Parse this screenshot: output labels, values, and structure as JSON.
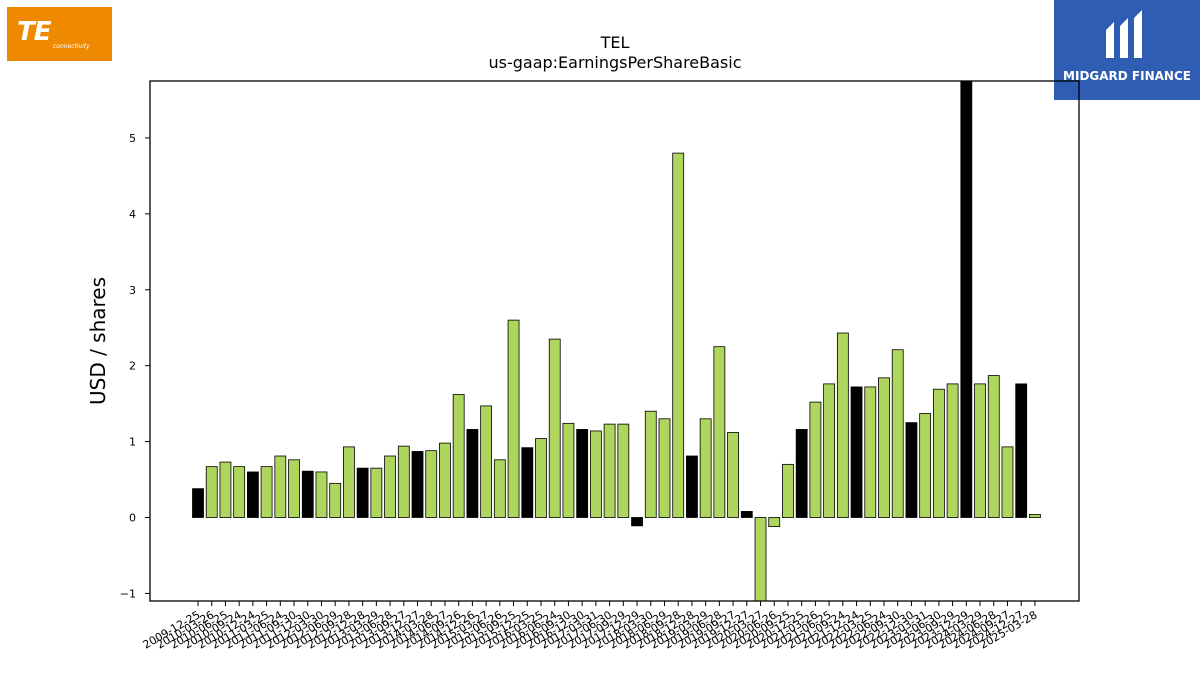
{
  "logos": {
    "left": {
      "text": "TE",
      "subtext": "connectivity",
      "color": "#ef8a00"
    },
    "right": {
      "text": "MIDGARD FINANCE",
      "color": "#2f5db3"
    }
  },
  "chart_data": {
    "type": "bar",
    "title": "TEL",
    "subtitle": "us-gaap:EarningsPerShareBasic",
    "xlabel": "",
    "ylabel": "USD / shares",
    "ylim": [
      -1.1,
      5.75
    ],
    "yticks": [
      -1,
      0,
      1,
      2,
      3,
      4,
      5
    ],
    "grid": false,
    "colors": {
      "dark": "#000000",
      "light": "#aed65e",
      "edge": "#000000"
    },
    "categories": [
      "2009-12-25",
      "2010-03-26",
      "2010-06-25",
      "2010-09-24",
      "2010-12-24",
      "2011-03-25",
      "2011-06-24",
      "2011-09-30",
      "2011-12-30",
      "2012-03-30",
      "2012-06-29",
      "2012-09-28",
      "2012-12-28",
      "2013-03-29",
      "2013-06-28",
      "2013-09-27",
      "2013-12-27",
      "2014-03-28",
      "2014-06-27",
      "2014-09-26",
      "2014-12-26",
      "2015-03-27",
      "2015-06-26",
      "2015-09-25",
      "2015-12-25",
      "2016-03-25",
      "2016-06-24",
      "2016-09-30",
      "2016-12-30",
      "2017-03-31",
      "2017-06-30",
      "2017-09-29",
      "2017-12-29",
      "2018-03-30",
      "2018-06-29",
      "2018-09-28",
      "2018-12-28",
      "2019-03-29",
      "2019-06-28",
      "2019-09-27",
      "2019-12-27",
      "2020-03-27",
      "2020-06-26",
      "2020-09-25",
      "2020-12-25",
      "2021-03-26",
      "2021-06-25",
      "2021-09-24",
      "2021-12-24",
      "2022-03-25",
      "2022-06-24",
      "2022-09-30",
      "2022-12-30",
      "2023-03-31",
      "2023-06-30",
      "2023-09-29",
      "2023-12-29",
      "2024-03-29",
      "2024-06-28",
      "2024-09-27",
      "2024-12-27",
      "2025-03-28"
    ],
    "values": [
      0.38,
      0.67,
      0.73,
      0.67,
      0.6,
      0.67,
      0.81,
      0.76,
      0.61,
      0.6,
      0.45,
      0.93,
      0.65,
      0.65,
      0.81,
      0.94,
      0.87,
      0.88,
      0.98,
      1.62,
      1.16,
      1.47,
      0.76,
      2.6,
      0.92,
      1.04,
      2.35,
      1.24,
      1.16,
      1.14,
      1.23,
      1.23,
      -0.11,
      1.4,
      1.3,
      4.8,
      0.81,
      1.3,
      2.25,
      1.12,
      0.08,
      -1.12,
      -0.12,
      0.7,
      1.16,
      1.52,
      1.76,
      2.43,
      1.72,
      1.72,
      1.84,
      2.21,
      1.25,
      1.37,
      1.69,
      1.76,
      5.8,
      1.76,
      1.87,
      0.93,
      1.76,
      0.04
    ],
    "bar_color_keys": [
      "dark",
      "light",
      "light",
      "light",
      "dark",
      "light",
      "light",
      "light",
      "dark",
      "light",
      "light",
      "light",
      "dark",
      "light",
      "light",
      "light",
      "dark",
      "light",
      "light",
      "light",
      "dark",
      "light",
      "light",
      "light",
      "dark",
      "light",
      "light",
      "light",
      "dark",
      "light",
      "light",
      "light",
      "dark",
      "light",
      "light",
      "light",
      "dark",
      "light",
      "light",
      "light",
      "dark",
      "light",
      "light",
      "light",
      "dark",
      "light",
      "light",
      "light",
      "dark",
      "light",
      "light",
      "light",
      "dark",
      "light",
      "light",
      "light",
      "dark",
      "light",
      "light",
      "light",
      "dark",
      "light"
    ]
  }
}
